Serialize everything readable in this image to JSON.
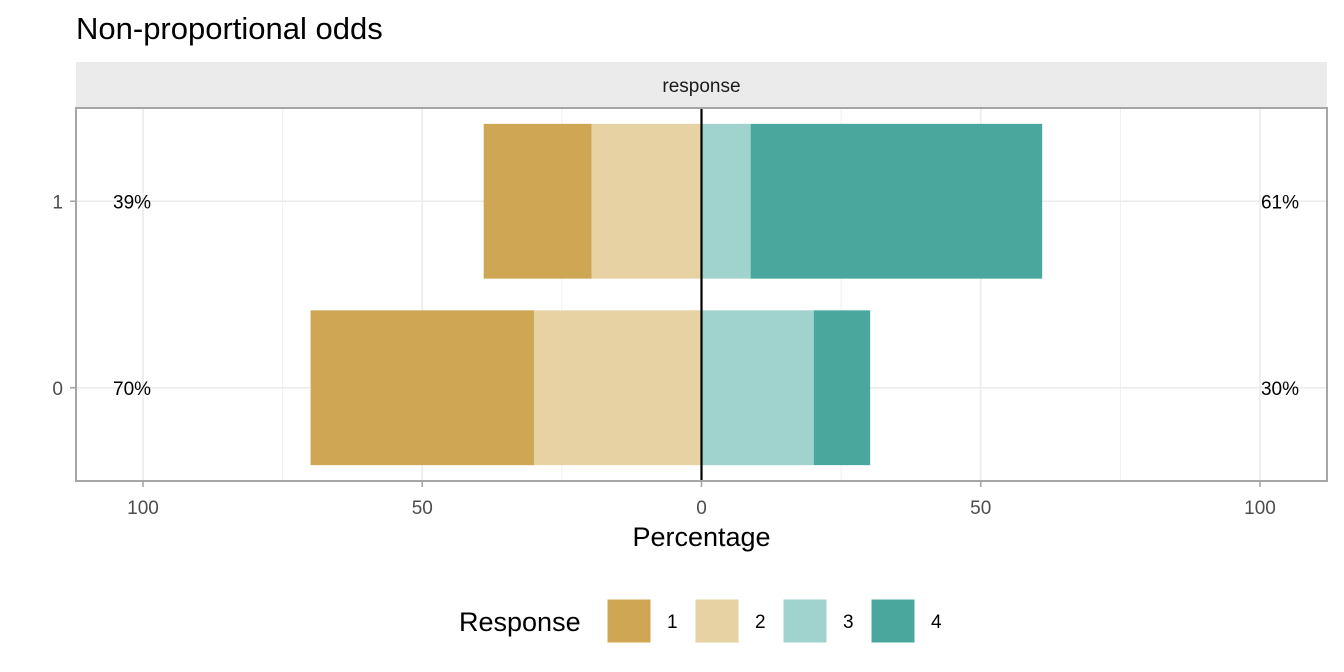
{
  "chart_data": {
    "type": "bar",
    "orientation": "horizontal-diverging",
    "title": "Non-proportional odds",
    "facet_label": "response",
    "xlabel": "Percentage",
    "ylabel": "",
    "xlim": [
      -112,
      112
    ],
    "x_ticks": [
      -100,
      -50,
      0,
      50,
      100
    ],
    "x_tick_labels": [
      "100",
      "50",
      "0",
      "50",
      "100"
    ],
    "categories": [
      "1",
      "0"
    ],
    "series": [
      {
        "name": "1",
        "color": "#cfa653",
        "values": [
          19.3,
          40.0
        ]
      },
      {
        "name": "2",
        "color": "#e6d2a3",
        "values": [
          19.7,
          30.0
        ]
      },
      {
        "name": "3",
        "color": "#a0d3cd",
        "values": [
          8.8,
          20.1
        ]
      },
      {
        "name": "4",
        "color": "#4aa79d",
        "values": [
          52.2,
          10.1
        ]
      }
    ],
    "negative_series": [
      "1",
      "2"
    ],
    "left_percent_labels": [
      "39%",
      "70%"
    ],
    "right_percent_labels": [
      "61%",
      "30%"
    ],
    "legend": {
      "title": "Response",
      "position": "bottom"
    },
    "grid": true
  }
}
